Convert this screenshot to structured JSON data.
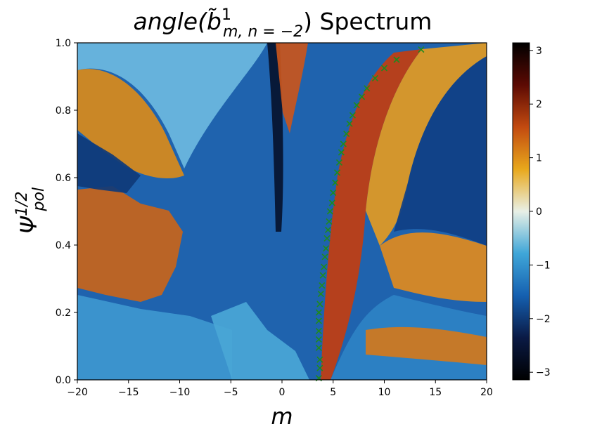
{
  "chart_data": {
    "type": "heatmap",
    "title": {
      "prefix": "angle(",
      "symbol": "b̃",
      "superscript": "1",
      "subscript": "m, n = −2",
      "suffix": ") Spectrum"
    },
    "xlabel": "m",
    "ylabel": {
      "symbol": "Ψ",
      "superscript": "1/2",
      "subscript": "pol"
    },
    "xlim": [
      -20,
      20
    ],
    "ylim": [
      0.0,
      1.0
    ],
    "x_ticks": [
      {
        "value": -20,
        "label": "−20"
      },
      {
        "value": -15,
        "label": "−15"
      },
      {
        "value": -10,
        "label": "−10"
      },
      {
        "value": -5,
        "label": "−5"
      },
      {
        "value": 0,
        "label": "0"
      },
      {
        "value": 5,
        "label": "5"
      },
      {
        "value": 10,
        "label": "10"
      },
      {
        "value": 15,
        "label": "15"
      },
      {
        "value": 20,
        "label": "20"
      }
    ],
    "y_ticks": [
      {
        "value": 0.0,
        "label": "0.0"
      },
      {
        "value": 0.2,
        "label": "0.2"
      },
      {
        "value": 0.4,
        "label": "0.4"
      },
      {
        "value": 0.6,
        "label": "0.6"
      },
      {
        "value": 0.8,
        "label": "0.8"
      },
      {
        "value": 1.0,
        "label": "1.0"
      }
    ],
    "colorbar": {
      "range": [
        -3.14159,
        3.14159
      ],
      "colormap_stops": [
        "#000000",
        "#0a1a45",
        "#1560b0",
        "#3fa6d8",
        "#e8f0e6",
        "#e8a81c",
        "#c24a10",
        "#5c0a03",
        "#000000"
      ],
      "ticks": [
        {
          "value": 3,
          "label": "3"
        },
        {
          "value": 2,
          "label": "2"
        },
        {
          "value": 1,
          "label": "1"
        },
        {
          "value": 0,
          "label": "0"
        },
        {
          "value": -1,
          "label": "−1"
        },
        {
          "value": -2,
          "label": "−2"
        },
        {
          "value": -3,
          "label": "−3"
        }
      ]
    },
    "markers": {
      "symbol": "x",
      "color": "#1e8a1e",
      "points": [
        {
          "m": 3.6,
          "psi": 0.005
        },
        {
          "m": 3.7,
          "psi": 0.035
        },
        {
          "m": 3.7,
          "psi": 0.06
        },
        {
          "m": 3.6,
          "psi": 0.095
        },
        {
          "m": 3.6,
          "psi": 0.12
        },
        {
          "m": 3.6,
          "psi": 0.145
        },
        {
          "m": 3.6,
          "psi": 0.175
        },
        {
          "m": 3.6,
          "psi": 0.2
        },
        {
          "m": 3.7,
          "psi": 0.225
        },
        {
          "m": 3.8,
          "psi": 0.255
        },
        {
          "m": 3.9,
          "psi": 0.28
        },
        {
          "m": 4.0,
          "psi": 0.31
        },
        {
          "m": 4.1,
          "psi": 0.335
        },
        {
          "m": 4.2,
          "psi": 0.365
        },
        {
          "m": 4.3,
          "psi": 0.39
        },
        {
          "m": 4.4,
          "psi": 0.42
        },
        {
          "m": 4.5,
          "psi": 0.445
        },
        {
          "m": 4.6,
          "psi": 0.47
        },
        {
          "m": 4.7,
          "psi": 0.5
        },
        {
          "m": 4.9,
          "psi": 0.525
        },
        {
          "m": 5.0,
          "psi": 0.555
        },
        {
          "m": 5.2,
          "psi": 0.585
        },
        {
          "m": 5.4,
          "psi": 0.615
        },
        {
          "m": 5.6,
          "psi": 0.645
        },
        {
          "m": 5.8,
          "psi": 0.675
        },
        {
          "m": 6.0,
          "psi": 0.7
        },
        {
          "m": 6.3,
          "psi": 0.73
        },
        {
          "m": 6.6,
          "psi": 0.76
        },
        {
          "m": 6.9,
          "psi": 0.785
        },
        {
          "m": 7.3,
          "psi": 0.815
        },
        {
          "m": 7.8,
          "psi": 0.84
        },
        {
          "m": 8.3,
          "psi": 0.865
        },
        {
          "m": 9.1,
          "psi": 0.895
        },
        {
          "m": 10.0,
          "psi": 0.925
        },
        {
          "m": 11.2,
          "psi": 0.95
        },
        {
          "m": 13.6,
          "psi": 0.98
        }
      ]
    },
    "grid": false,
    "legend": "none"
  }
}
